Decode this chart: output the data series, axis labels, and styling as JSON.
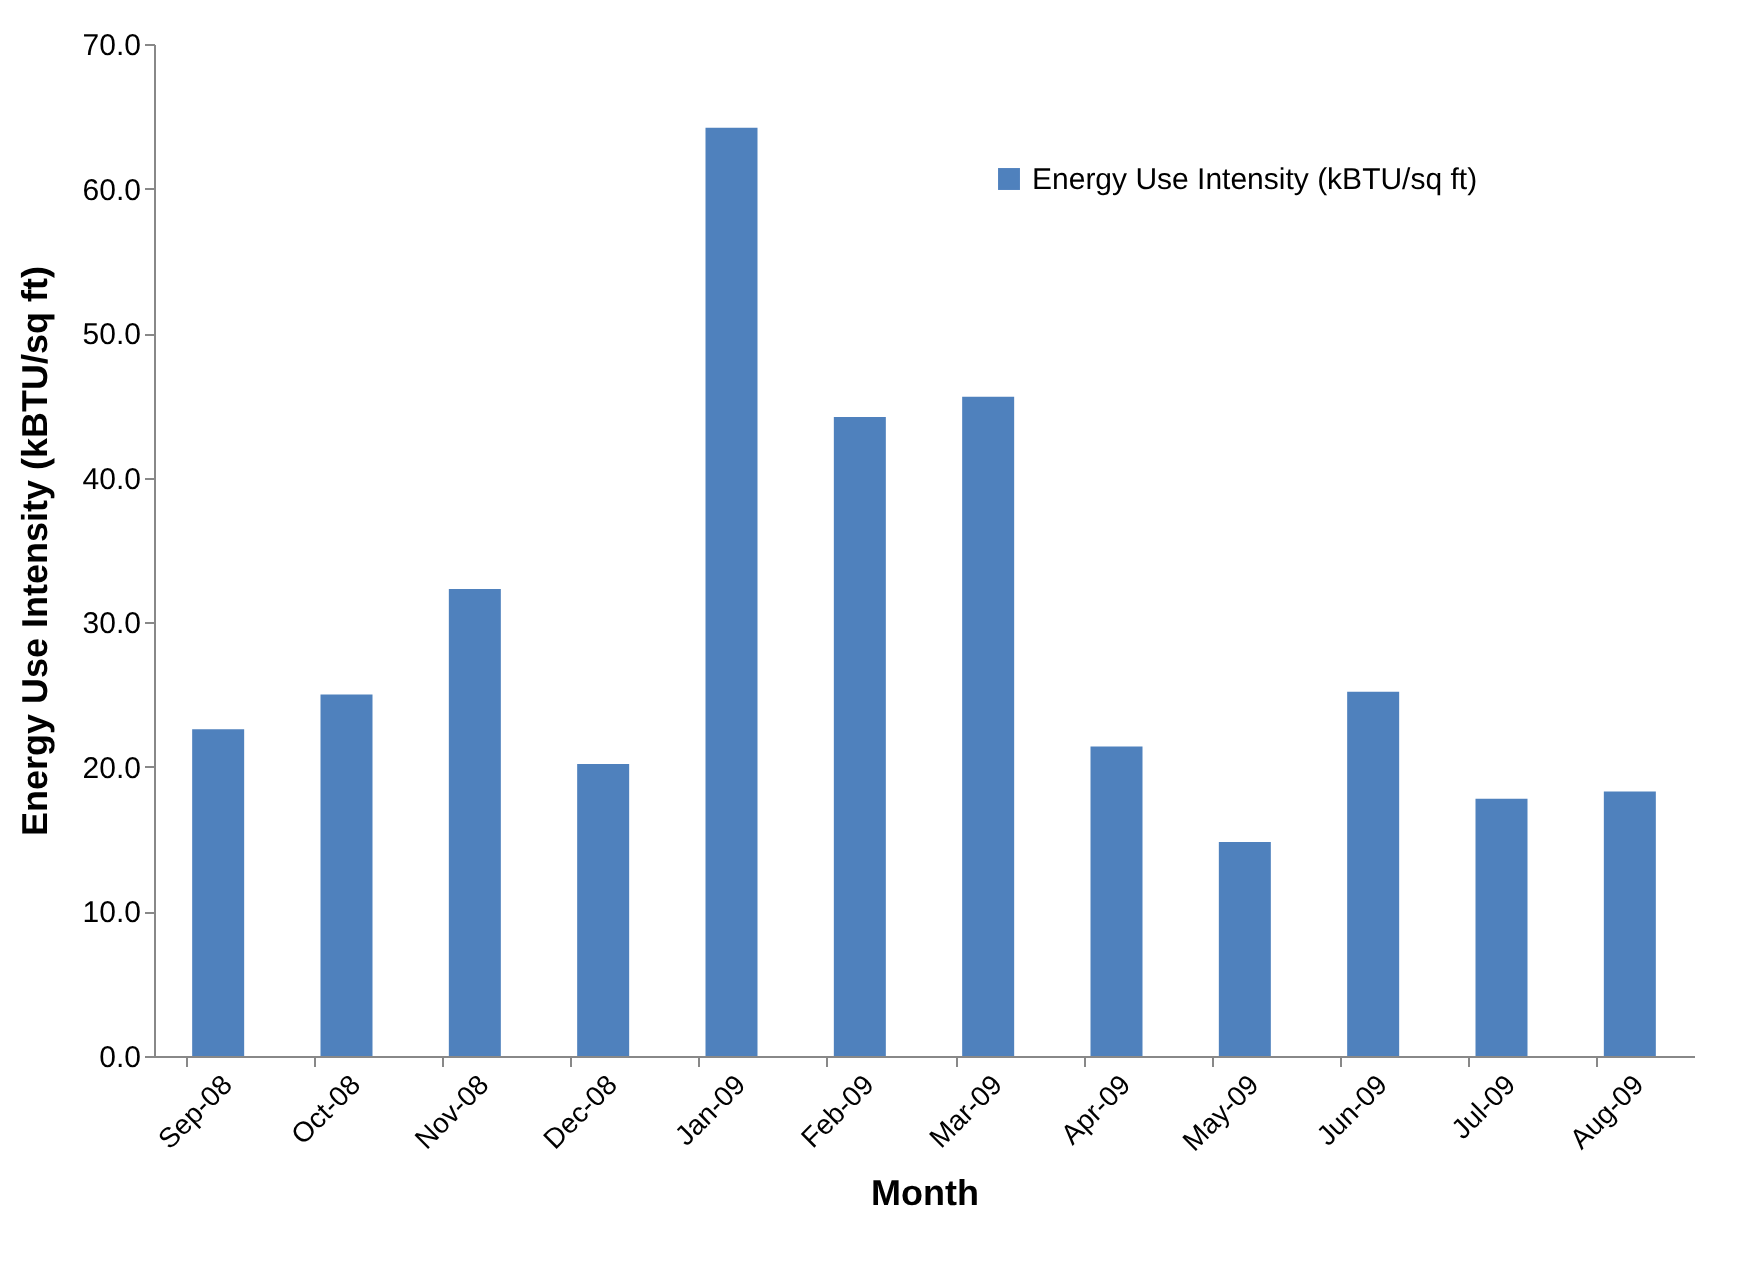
{
  "chart_data": {
    "type": "bar",
    "xlabel": "Month",
    "ylabel": "Energy Use Intensity (kBTU/sq ft)",
    "categories": [
      "Sep-08",
      "Oct-08",
      "Nov-08",
      "Dec-08",
      "Jan-09",
      "Feb-09",
      "Mar-09",
      "Apr-09",
      "May-09",
      "Jun-09",
      "Jul-09",
      "Aug-09"
    ],
    "series": [
      {
        "name": "Energy Use Intensity (kBTU/sq ft)",
        "color": "#4f81bd",
        "values": [
          22.6,
          25.0,
          32.3,
          20.2,
          64.2,
          44.2,
          45.6,
          21.4,
          14.8,
          25.2,
          17.8,
          18.3
        ]
      }
    ],
    "ylim": [
      0,
      70
    ],
    "yticks": [
      {
        "value": 0,
        "label": "0.0"
      },
      {
        "value": 10,
        "label": "10.0"
      },
      {
        "value": 20,
        "label": "20.0"
      },
      {
        "value": 30,
        "label": "30.0"
      },
      {
        "value": 40,
        "label": "40.0"
      },
      {
        "value": 50,
        "label": "50.0"
      },
      {
        "value": 60,
        "label": "60.0"
      },
      {
        "value": 70,
        "label": "70.0"
      }
    ],
    "grid": false,
    "legend": "top right"
  }
}
